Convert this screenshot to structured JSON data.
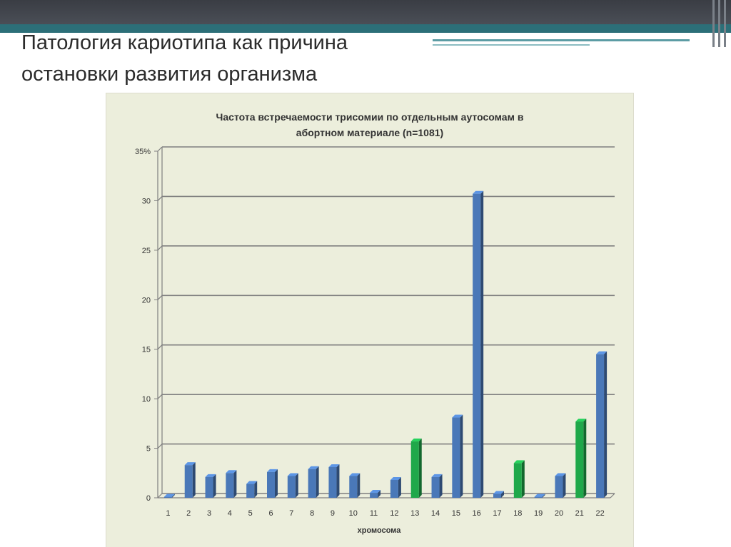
{
  "slide": {
    "title_line1": "Патология кариотипа как причина",
    "title_line2": "остановки развития организма"
  },
  "colors": {
    "bar_default": "#4a78b8",
    "bar_highlight": "#1fa84a",
    "chart_background": "#eceedc",
    "gridline": "#7f7f7f"
  },
  "chart_data": {
    "type": "bar",
    "title": "Частота встречаемости трисомии по отдельным аутосомам в абортном материале (n=1081)",
    "xlabel": "хромосома",
    "ylabel": "",
    "ylim": [
      0,
      35
    ],
    "yticks": [
      0,
      5,
      10,
      15,
      20,
      25,
      30,
      35
    ],
    "ytick_labels": [
      "0",
      "5",
      "10",
      "15",
      "20",
      "25",
      "30",
      "35%"
    ],
    "grid": true,
    "legend": "none",
    "categories": [
      "1",
      "2",
      "3",
      "4",
      "5",
      "6",
      "7",
      "8",
      "9",
      "10",
      "11",
      "12",
      "13",
      "14",
      "15",
      "16",
      "17",
      "18",
      "19",
      "20",
      "21",
      "22"
    ],
    "values": [
      0.1,
      3.3,
      2.1,
      2.5,
      1.4,
      2.6,
      2.2,
      2.9,
      3.1,
      2.2,
      0.5,
      1.8,
      5.7,
      2.1,
      8.1,
      30.7,
      0.4,
      3.5,
      0.1,
      2.2,
      7.7,
      14.5
    ],
    "highlighted_categories": [
      "13",
      "18",
      "21"
    ]
  }
}
